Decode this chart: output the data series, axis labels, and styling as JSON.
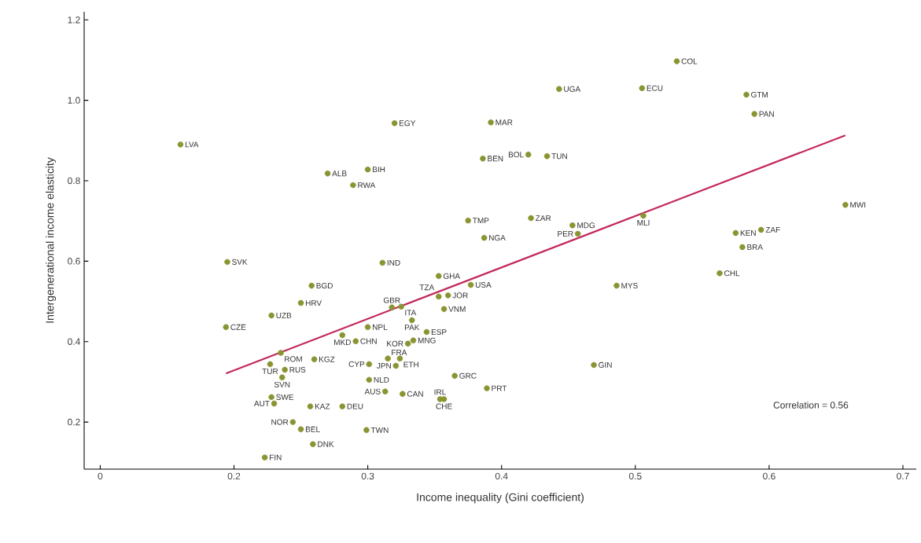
{
  "chart_data": {
    "type": "scatter",
    "xlabel": "Income inequality (Gini coefficient)",
    "ylabel": "Intergenerational income elasticity",
    "xlim": [
      0.088,
      0.71
    ],
    "ylim": [
      0.083,
      1.22
    ],
    "xticks": [
      {
        "value": 0.1,
        "label": "0"
      },
      0.2,
      0.3,
      0.4,
      0.5,
      0.6,
      0.7
    ],
    "yticks": [
      0.2,
      0.4,
      0.6,
      0.8,
      {
        "value": 1,
        "label": "1.0"
      },
      1.2
    ],
    "grid": false,
    "series": [
      {
        "marker": "circle",
        "color": "#8a9431",
        "x": [
          0.531,
          0.443,
          0.505,
          0.583,
          0.589,
          0.32,
          0.392,
          0.16,
          0.42,
          0.386,
          0.434,
          0.27,
          0.3,
          0.289,
          0.375,
          0.422,
          0.453,
          0.457,
          0.506,
          0.387,
          0.657,
          0.575,
          0.594,
          0.58,
          0.563,
          0.486,
          0.469,
          0.195,
          0.311,
          0.353,
          0.258,
          0.377,
          0.36,
          0.353,
          0.357,
          0.325,
          0.318,
          0.333,
          0.344,
          0.334,
          0.3,
          0.281,
          0.291,
          0.33,
          0.26,
          0.315,
          0.324,
          0.321,
          0.301,
          0.301,
          0.313,
          0.326,
          0.354,
          0.357,
          0.365,
          0.389,
          0.281,
          0.257,
          0.25,
          0.259,
          0.299,
          0.25,
          0.228,
          0.194,
          0.227,
          0.235,
          0.238,
          0.236,
          0.228,
          0.23,
          0.244,
          0.223
        ],
        "values": [
          1.097,
          1.028,
          1.03,
          1.014,
          0.966,
          0.943,
          0.945,
          0.89,
          0.865,
          0.855,
          0.861,
          0.818,
          0.828,
          0.789,
          0.701,
          0.707,
          0.689,
          0.668,
          0.713,
          0.658,
          0.74,
          0.67,
          0.678,
          0.635,
          0.57,
          0.539,
          0.342,
          0.598,
          0.596,
          0.563,
          0.539,
          0.541,
          0.515,
          0.512,
          0.481,
          0.487,
          0.485,
          0.453,
          0.424,
          0.403,
          0.436,
          0.416,
          0.401,
          0.395,
          0.356,
          0.358,
          0.358,
          0.34,
          0.344,
          0.305,
          0.276,
          0.27,
          0.257,
          0.257,
          0.315,
          0.284,
          0.239,
          0.239,
          0.182,
          0.145,
          0.18,
          0.496,
          0.465,
          0.436,
          0.344,
          0.372,
          0.33,
          0.311,
          0.262,
          0.246,
          0.2,
          0.112
        ]
      },
      {
        "type": "line",
        "marker": "none",
        "color": "#c2285c",
        "x": [
          0.194,
          0.657
        ],
        "values": [
          0.321,
          0.913
        ]
      }
    ],
    "annotations": [
      "Correlation = 0.56",
      {
        "text": "COL",
        "x": 0.531,
        "y": 1.097
      },
      {
        "text": "UGA",
        "x": 0.443,
        "y": 1.028
      },
      {
        "text": "ECU",
        "x": 0.505,
        "y": 1.03
      },
      {
        "text": "GTM",
        "x": 0.583,
        "y": 1.014
      },
      {
        "text": "PAN",
        "x": 0.589,
        "y": 0.966
      },
      {
        "text": "EGY",
        "x": 0.32,
        "y": 0.943
      },
      {
        "text": "MAR",
        "x": 0.392,
        "y": 0.945
      },
      {
        "text": "LVA",
        "x": 0.16,
        "y": 0.89
      },
      {
        "text": "BOL",
        "x": 0.42,
        "y": 0.865
      },
      {
        "text": "BEN",
        "x": 0.386,
        "y": 0.855
      },
      {
        "text": "TUN",
        "x": 0.434,
        "y": 0.861
      },
      {
        "text": "ALB",
        "x": 0.27,
        "y": 0.818
      },
      {
        "text": "BIH",
        "x": 0.3,
        "y": 0.828
      },
      {
        "text": "RWA",
        "x": 0.289,
        "y": 0.789
      },
      {
        "text": "TMP",
        "x": 0.375,
        "y": 0.701
      },
      {
        "text": "ZAR",
        "x": 0.422,
        "y": 0.707
      },
      {
        "text": "MDG",
        "x": 0.453,
        "y": 0.689
      },
      {
        "text": "PER",
        "x": 0.457,
        "y": 0.668
      },
      {
        "text": "MLI",
        "x": 0.506,
        "y": 0.713
      },
      {
        "text": "NGA",
        "x": 0.387,
        "y": 0.658
      },
      {
        "text": "MWI",
        "x": 0.657,
        "y": 0.74
      },
      {
        "text": "KEN",
        "x": 0.575,
        "y": 0.67
      },
      {
        "text": "ZAF",
        "x": 0.594,
        "y": 0.678
      },
      {
        "text": "BRA",
        "x": 0.58,
        "y": 0.635
      },
      {
        "text": "CHL",
        "x": 0.563,
        "y": 0.57
      },
      {
        "text": "MYS",
        "x": 0.486,
        "y": 0.539
      },
      {
        "text": "GIN",
        "x": 0.469,
        "y": 0.342
      },
      {
        "text": "SVK",
        "x": 0.195,
        "y": 0.598
      },
      {
        "text": "IND",
        "x": 0.311,
        "y": 0.596
      },
      {
        "text": "GHA",
        "x": 0.353,
        "y": 0.563
      },
      {
        "text": "BGD",
        "x": 0.258,
        "y": 0.539
      },
      {
        "text": "USA",
        "x": 0.377,
        "y": 0.541
      },
      {
        "text": "JOR",
        "x": 0.36,
        "y": 0.515
      },
      {
        "text": "TZA",
        "x": 0.353,
        "y": 0.512
      },
      {
        "text": "VNM",
        "x": 0.357,
        "y": 0.481
      },
      {
        "text": "ITA",
        "x": 0.325,
        "y": 0.487
      },
      {
        "text": "GBR",
        "x": 0.318,
        "y": 0.485
      },
      {
        "text": "PAK",
        "x": 0.333,
        "y": 0.453
      },
      {
        "text": "ESP",
        "x": 0.344,
        "y": 0.424
      },
      {
        "text": "MNG",
        "x": 0.334,
        "y": 0.403
      },
      {
        "text": "NPL",
        "x": 0.3,
        "y": 0.436
      },
      {
        "text": "MKD",
        "x": 0.281,
        "y": 0.416
      },
      {
        "text": "CHN",
        "x": 0.291,
        "y": 0.401
      },
      {
        "text": "KOR",
        "x": 0.33,
        "y": 0.395
      },
      {
        "text": "KGZ",
        "x": 0.26,
        "y": 0.356
      },
      {
        "text": "FRA",
        "x": 0.315,
        "y": 0.358
      },
      {
        "text": "ETH",
        "x": 0.324,
        "y": 0.358
      },
      {
        "text": "JPN",
        "x": 0.321,
        "y": 0.34
      },
      {
        "text": "CYP",
        "x": 0.301,
        "y": 0.344
      },
      {
        "text": "NLD",
        "x": 0.301,
        "y": 0.305
      },
      {
        "text": "AUS",
        "x": 0.313,
        "y": 0.276
      },
      {
        "text": "CAN",
        "x": 0.326,
        "y": 0.27
      },
      {
        "text": "IRL",
        "x": 0.354,
        "y": 0.257
      },
      {
        "text": "CHE",
        "x": 0.357,
        "y": 0.257
      },
      {
        "text": "GRC",
        "x": 0.365,
        "y": 0.315
      },
      {
        "text": "PRT",
        "x": 0.389,
        "y": 0.284
      },
      {
        "text": "DEU",
        "x": 0.281,
        "y": 0.239
      },
      {
        "text": "KAZ",
        "x": 0.257,
        "y": 0.239
      },
      {
        "text": "BEL",
        "x": 0.25,
        "y": 0.182
      },
      {
        "text": "DNK",
        "x": 0.259,
        "y": 0.145
      },
      {
        "text": "TWN",
        "x": 0.299,
        "y": 0.18
      },
      {
        "text": "HRV",
        "x": 0.25,
        "y": 0.496
      },
      {
        "text": "UZB",
        "x": 0.228,
        "y": 0.465
      },
      {
        "text": "CZE",
        "x": 0.194,
        "y": 0.436
      },
      {
        "text": "TUR",
        "x": 0.227,
        "y": 0.344
      },
      {
        "text": "ROM",
        "x": 0.235,
        "y": 0.372
      },
      {
        "text": "RUS",
        "x": 0.238,
        "y": 0.33
      },
      {
        "text": "SVN",
        "x": 0.236,
        "y": 0.311
      },
      {
        "text": "SWE",
        "x": 0.228,
        "y": 0.262
      },
      {
        "text": "AUT",
        "x": 0.23,
        "y": 0.246
      },
      {
        "text": "NOR",
        "x": 0.244,
        "y": 0.2
      },
      {
        "text": "FIN",
        "x": 0.223,
        "y": 0.112
      }
    ]
  }
}
